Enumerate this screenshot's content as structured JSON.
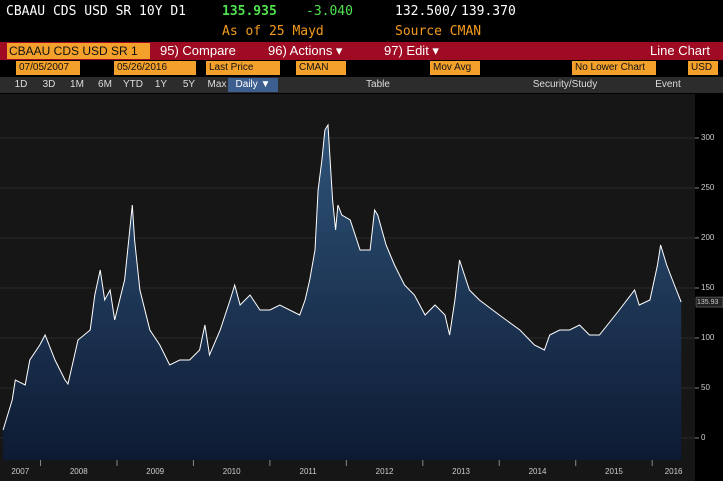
{
  "header": {
    "ticker": "CBAAU CDS USD SR 10Y D1",
    "price": "135.935",
    "change": "-3.040",
    "range_low": "132.500",
    "range_sep": "/",
    "range_high": "139.370",
    "as_of": "As of 25 Mayd",
    "source": "Source CMAN"
  },
  "toolbar": {
    "security": "CBAAU CDS USD SR 1",
    "compare": "95) Compare",
    "actions": "96) Actions ▾",
    "edit": "97) Edit ▾",
    "chart_type": "Line Chart"
  },
  "fields": {
    "start_date": "07/05/2007",
    "end_date": "05/26/2016",
    "price_field": "Last Price",
    "source": "CMAN",
    "study": "Mov Avg",
    "lower": "No Lower Chart",
    "currency": "USD"
  },
  "buttons": [
    "1D",
    "3D",
    "1M",
    "6M",
    "YTD",
    "1Y",
    "5Y",
    "Max"
  ],
  "period": "Daily ▼",
  "table": "Table",
  "security_study": "Security/Study",
  "event": "Event",
  "chart_data": {
    "type": "line",
    "last_tag": "135.93",
    "color": "#ffffff",
    "x": [
      2007.51,
      2007.63,
      2007.67,
      2007.8,
      2007.86,
      2007.99,
      2008.06,
      2008.19,
      2008.32,
      2008.36,
      2008.49,
      2008.65,
      2008.71,
      2008.78,
      2008.84,
      2008.91,
      2008.97,
      2009.1,
      2009.14,
      2009.2,
      2009.23,
      2009.3,
      2009.43,
      2009.56,
      2009.69,
      2009.82,
      2009.95,
      2010.08,
      2010.15,
      2010.21,
      2010.35,
      2010.48,
      2010.54,
      2010.61,
      2010.74,
      2010.87,
      2011.0,
      2011.13,
      2011.39,
      2011.46,
      2011.52,
      2011.59,
      2011.63,
      2011.68,
      2011.72,
      2011.76,
      2011.78,
      2011.82,
      2011.86,
      2011.89,
      2011.94,
      2012.05,
      2012.18,
      2012.31,
      2012.37,
      2012.41,
      2012.52,
      2012.63,
      2012.76,
      2012.89,
      2013.03,
      2013.16,
      2013.29,
      2013.35,
      2013.42,
      2013.48,
      2013.61,
      2013.74,
      2014.0,
      2014.27,
      2014.46,
      2014.59,
      2014.66,
      2014.79,
      2014.92,
      2015.05,
      2015.18,
      2015.31,
      2015.57,
      2015.77,
      2015.83,
      2015.97,
      2016.07,
      2016.11,
      2016.19,
      2016.29,
      2016.38
    ],
    "values": [
      8,
      38,
      58,
      53,
      78,
      93,
      103,
      78,
      58,
      54,
      98,
      108,
      143,
      168,
      138,
      148,
      118,
      158,
      188,
      233,
      198,
      148,
      108,
      93,
      73,
      78,
      78,
      88,
      113,
      83,
      108,
      138,
      153,
      133,
      143,
      128,
      128,
      133,
      123,
      138,
      158,
      188,
      248,
      278,
      308,
      313,
      288,
      238,
      208,
      233,
      223,
      218,
      188,
      188,
      228,
      223,
      193,
      173,
      153,
      143,
      123,
      133,
      123,
      103,
      138,
      178,
      148,
      138,
      123,
      108,
      93,
      88,
      103,
      108,
      108,
      113,
      103,
      103,
      128,
      148,
      133,
      138,
      173,
      193,
      173,
      153,
      135.935
    ],
    "xlim": [
      2007.47,
      2016.56
    ],
    "ylim": [
      -22,
      343
    ],
    "xticks": [
      2007,
      2008,
      2009,
      2010,
      2011,
      2012,
      2013,
      2014,
      2015,
      2016
    ],
    "yticks": [
      0,
      50,
      100,
      150,
      200,
      250,
      300
    ]
  }
}
